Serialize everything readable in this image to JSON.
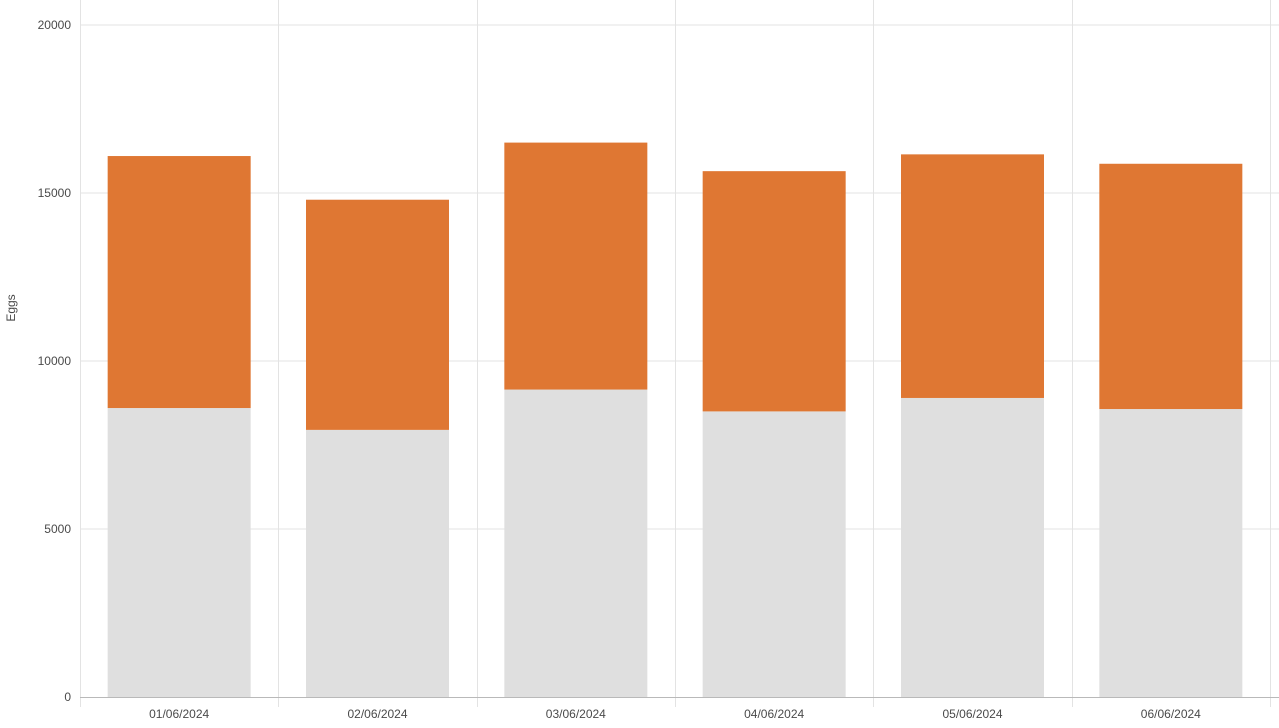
{
  "chart_data": {
    "type": "bar",
    "stacked": true,
    "title": "",
    "xlabel": "",
    "ylabel": "Eggs",
    "categories": [
      "01/06/2024",
      "02/06/2024",
      "03/06/2024",
      "04/06/2024",
      "05/06/2024",
      "06/06/2024"
    ],
    "series": [
      {
        "values": [
          8600,
          7950,
          9150,
          8500,
          8900,
          8570
        ],
        "color": "#dfdfdf"
      },
      {
        "values": [
          7500,
          6850,
          7350,
          7150,
          7250,
          7300
        ],
        "color": "#df7733"
      }
    ],
    "ylim": [
      0,
      20000
    ],
    "yticks": [
      0,
      5000,
      10000,
      15000,
      20000
    ],
    "grid": true,
    "legend": "none"
  }
}
